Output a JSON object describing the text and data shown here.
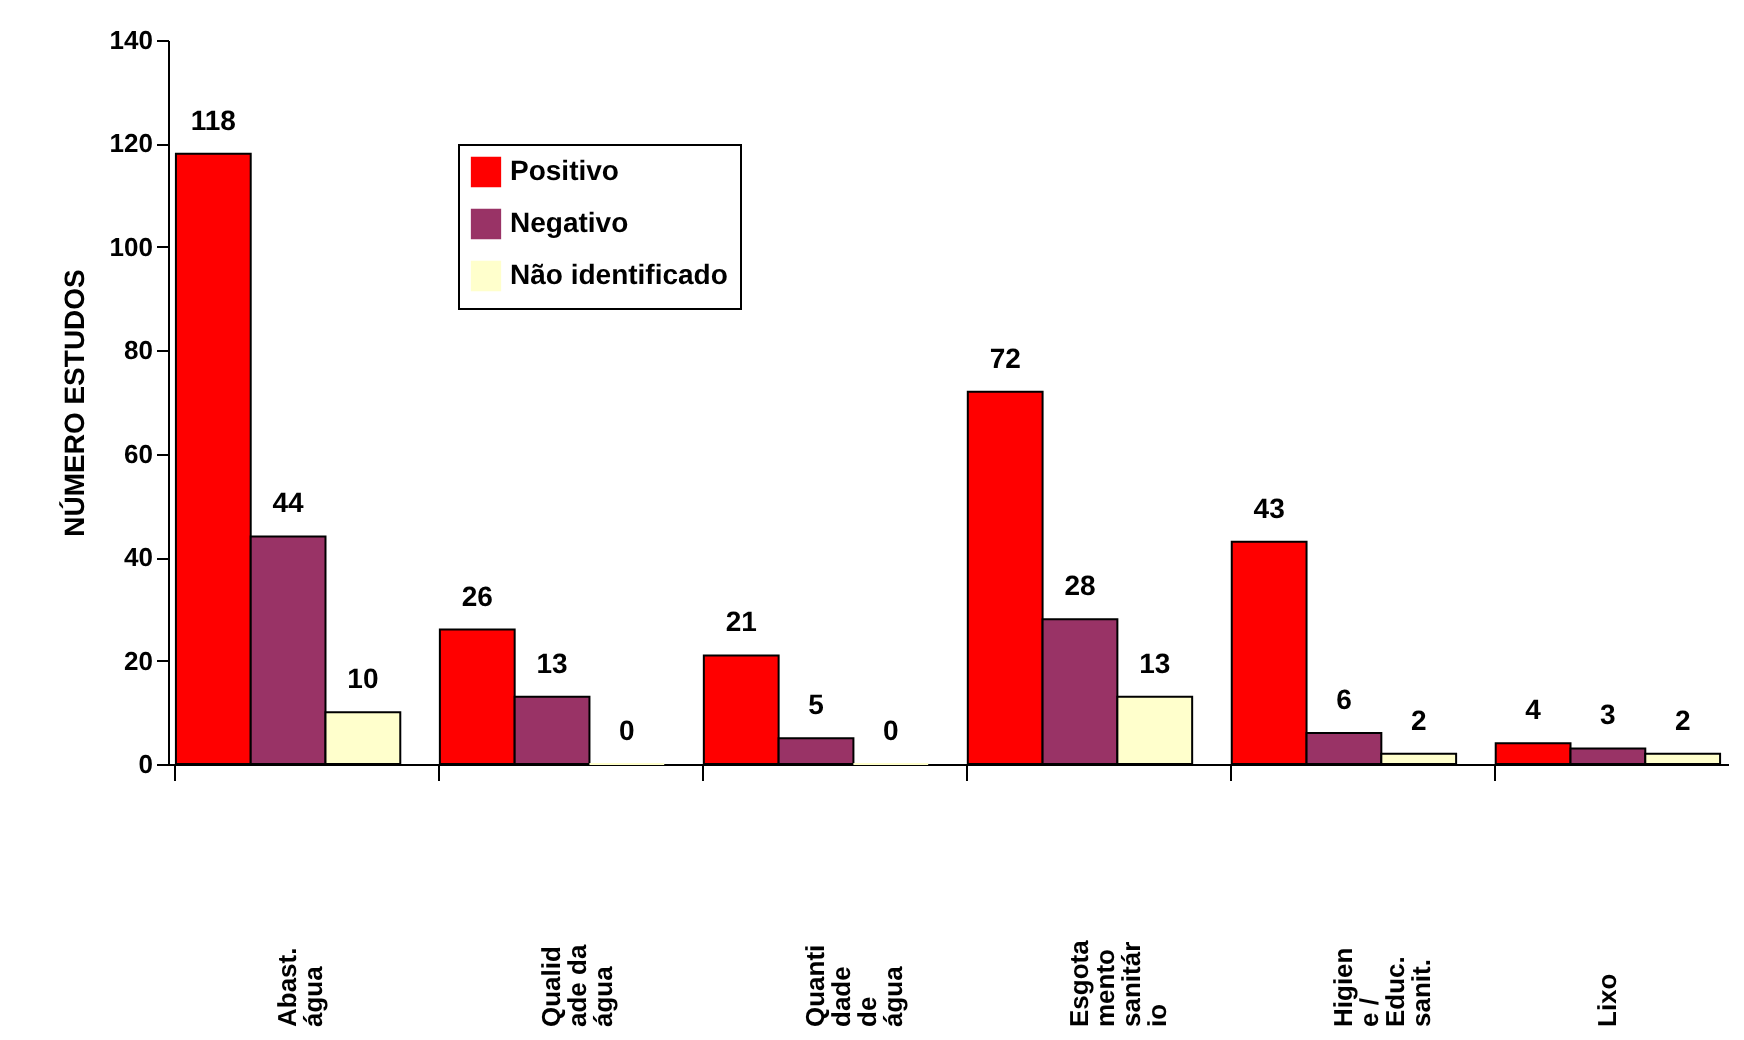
{
  "chart_data": {
    "type": "bar",
    "categories": [
      "Abast.\nágua",
      "Qualid\nade da\nágua",
      "Quanti\ndade\nde\nágua",
      "Esgota\nmento\nsanitár\nio",
      "Higien\ne /\nEduc.\nsanit.",
      "Lixo"
    ],
    "series": [
      {
        "name": "Positivo",
        "color": "#ff0000",
        "values": [
          118,
          26,
          21,
          72,
          43,
          4
        ]
      },
      {
        "name": "Negativo",
        "color": "#993366",
        "values": [
          44,
          13,
          5,
          28,
          6,
          3
        ]
      },
      {
        "name": "Não identificado",
        "color": "#ffffcc",
        "values": [
          10,
          0,
          0,
          13,
          2,
          2
        ]
      }
    ],
    "ylabel": "NÚMERO ESTUDOS",
    "ylim": [
      0,
      140
    ],
    "yticks": [
      0,
      20,
      40,
      60,
      80,
      100,
      120,
      140
    ],
    "grid": false,
    "legend": "top left",
    "data_labels": true
  }
}
